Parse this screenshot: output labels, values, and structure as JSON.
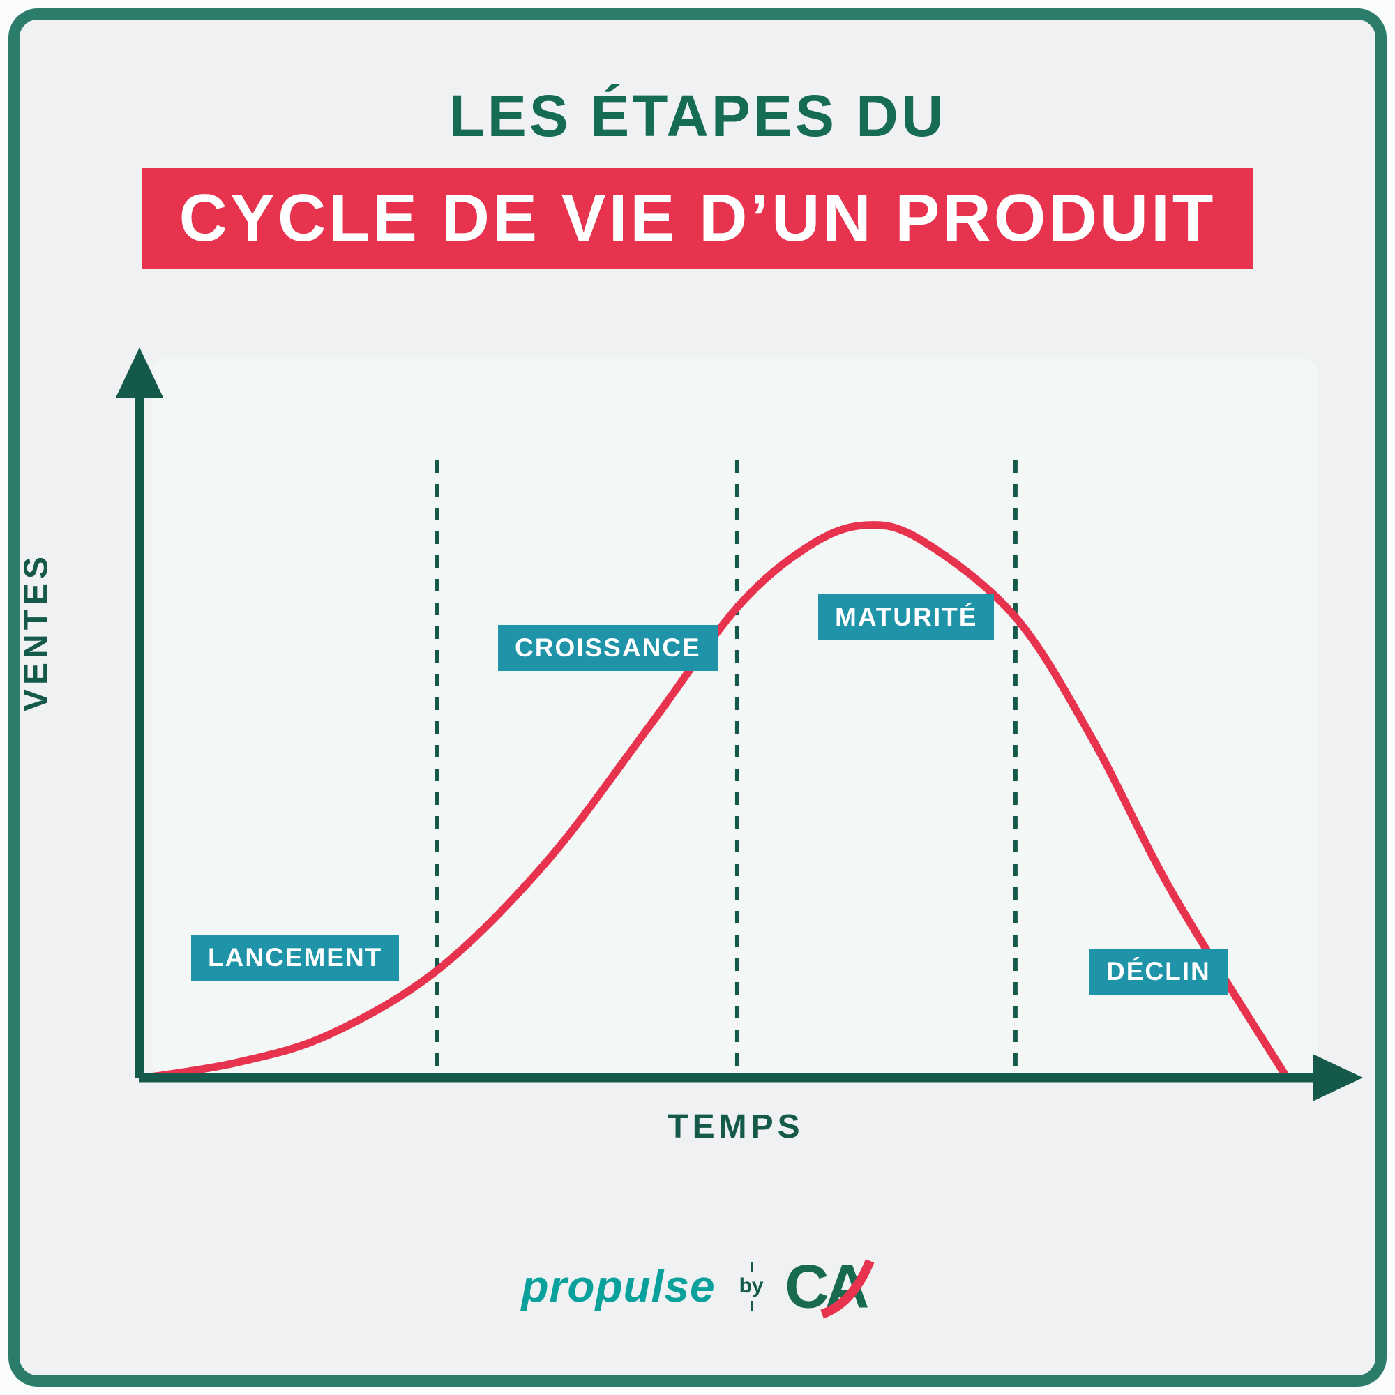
{
  "title": {
    "line1": "LES ÉTAPES DU",
    "line2": "CYCLE DE VIE D’UN PRODUIT"
  },
  "axis": {
    "y_label": "VENTES",
    "x_label": "TEMPS"
  },
  "phase_labels": {
    "lancement": "LANCEMENT",
    "croissance": "CROISSANCE",
    "maturite": "MATURITÉ",
    "declin": "DÉCLIN"
  },
  "footer": {
    "brand_part1": "pro",
    "brand_part2": "pulse",
    "by_label": "by",
    "logo_text": "CA"
  },
  "colors": {
    "frame_teal": "#2c7c6c",
    "title_green": "#156b53",
    "banner_red": "#e8334e",
    "axis_green": "#14594a",
    "label_teal": "#1f93a8",
    "curve_red": "#e8334e",
    "brand_teal": "#0aa19c",
    "panel_fill": "#f3f7f6"
  },
  "chart_data": {
    "type": "line",
    "title": "Les étapes du cycle de vie d’un produit",
    "xlabel": "TEMPS",
    "ylabel": "VENTES",
    "x": [
      0,
      8,
      16,
      25.5,
      35,
      44,
      51.8,
      58,
      63,
      68,
      76.2,
      83,
      90,
      100
    ],
    "y": [
      0,
      2.5,
      7,
      17.5,
      35,
      57,
      76.6,
      86.5,
      90,
      87.5,
      75,
      55,
      30,
      0
    ],
    "xlim": [
      0,
      100
    ],
    "ylim": [
      0,
      100
    ],
    "grid": false,
    "legend": "none",
    "phases": [
      {
        "label": "LANCEMENT",
        "x_range": [
          0,
          25.5
        ]
      },
      {
        "label": "CROISSANCE",
        "x_range": [
          25.5,
          51.8
        ]
      },
      {
        "label": "MATURITÉ",
        "x_range": [
          51.8,
          76.2
        ]
      },
      {
        "label": "DÉCLIN",
        "x_range": [
          76.2,
          100
        ]
      }
    ],
    "phase_boundaries_x": [
      25.5,
      51.8,
      76.2
    ],
    "annotations": [
      "Bell-shaped red sales curve over time",
      "Dashed dark-green vertical lines separate the four phases"
    ]
  }
}
